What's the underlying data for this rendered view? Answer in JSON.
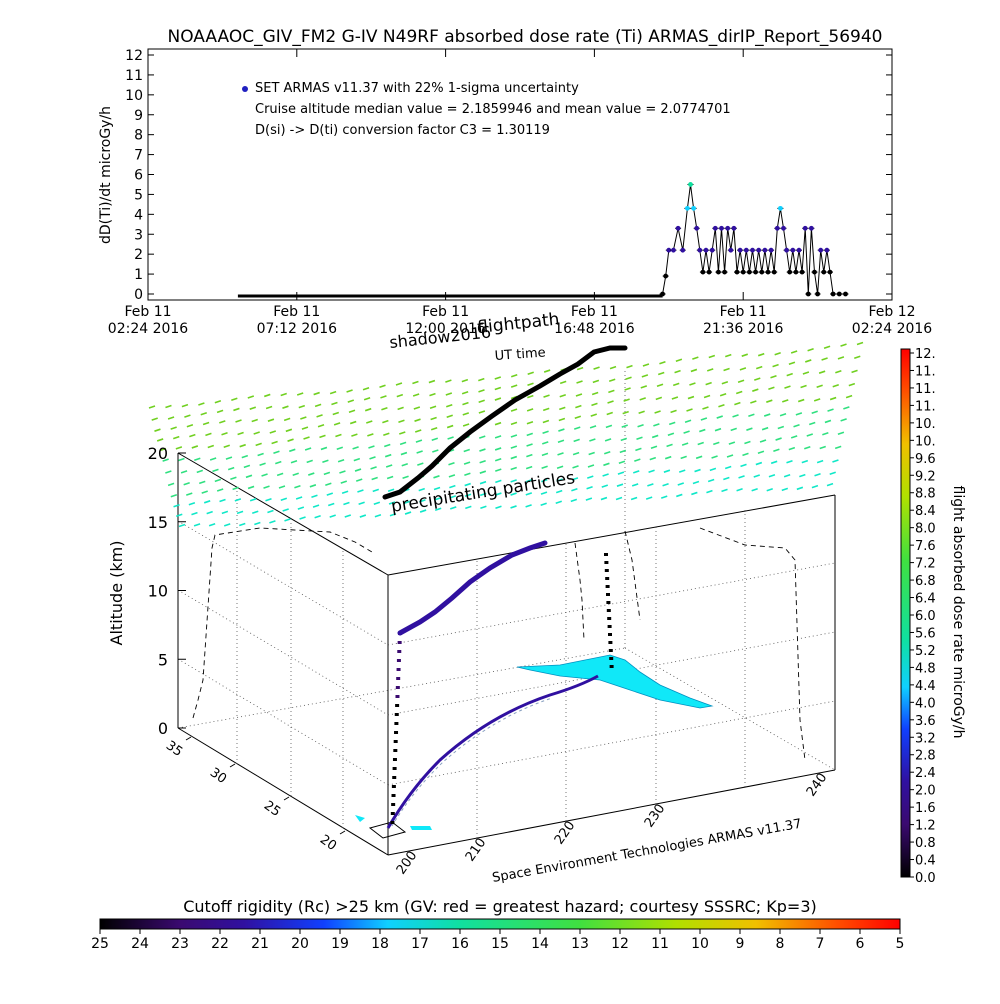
{
  "title": "NOAAAOC_GIV_FM2 G-IV    N49RF  absorbed dose rate (Ti) ARMAS_dirIP_Report_56940",
  "chart_data": [
    {
      "type": "scatter",
      "ylabel": "dD(Ti)/dt microGy/h",
      "ylim": [
        0,
        12
      ],
      "yticks": [
        0,
        1,
        2,
        3,
        4,
        5,
        6,
        7,
        8,
        9,
        10,
        11,
        12
      ],
      "xticks": [
        {
          "line1": "Feb 11",
          "line2": "02:24 2016"
        },
        {
          "line1": "Feb 11",
          "line2": "07:12 2016"
        },
        {
          "line1": "Feb 11",
          "line2": "12:00 2016"
        },
        {
          "line1": "Feb 11",
          "line2": "16:48 2016"
        },
        {
          "line1": "Feb 11",
          "line2": "21:36 2016"
        },
        {
          "line1": "Feb 12",
          "line2": "02:24 2016"
        }
      ],
      "xlim_hours": [
        0,
        24
      ],
      "annotations": [
        "SET ARMAS v11.37 with 22% 1-sigma uncertainty",
        "Cruise altitude median value = 2.1859946 and mean value = 2.0774701",
        "D(si) -> D(ti) conversion factor C3 = 1.30119"
      ],
      "legend_color": "#2020c0",
      "zero_segment_hours": [
        2.9,
        16.6
      ],
      "series_points": [
        [
          16.6,
          0.0
        ],
        [
          16.7,
          0.9
        ],
        [
          16.8,
          2.2
        ],
        [
          16.95,
          2.2
        ],
        [
          17.1,
          3.3
        ],
        [
          17.25,
          2.2
        ],
        [
          17.4,
          4.3
        ],
        [
          17.5,
          5.5
        ],
        [
          17.6,
          4.3
        ],
        [
          17.7,
          3.3
        ],
        [
          17.8,
          2.2
        ],
        [
          17.9,
          1.1
        ],
        [
          18.0,
          2.2
        ],
        [
          18.1,
          1.1
        ],
        [
          18.2,
          2.2
        ],
        [
          18.3,
          3.3
        ],
        [
          18.4,
          1.1
        ],
        [
          18.5,
          3.3
        ],
        [
          18.6,
          1.1
        ],
        [
          18.7,
          3.3
        ],
        [
          18.8,
          2.2
        ],
        [
          18.9,
          3.3
        ],
        [
          19.0,
          1.1
        ],
        [
          19.1,
          2.2
        ],
        [
          19.2,
          1.1
        ],
        [
          19.3,
          2.2
        ],
        [
          19.4,
          1.1
        ],
        [
          19.5,
          2.2
        ],
        [
          19.6,
          1.1
        ],
        [
          19.7,
          2.2
        ],
        [
          19.8,
          1.1
        ],
        [
          19.9,
          2.2
        ],
        [
          20.0,
          1.1
        ],
        [
          20.1,
          2.2
        ],
        [
          20.2,
          1.1
        ],
        [
          20.3,
          3.3
        ],
        [
          20.4,
          4.3
        ],
        [
          20.5,
          3.3
        ],
        [
          20.6,
          2.2
        ],
        [
          20.7,
          1.1
        ],
        [
          20.8,
          2.2
        ],
        [
          20.9,
          1.1
        ],
        [
          21.0,
          2.2
        ],
        [
          21.1,
          1.1
        ],
        [
          21.2,
          3.3
        ],
        [
          21.3,
          0.0
        ],
        [
          21.4,
          3.3
        ],
        [
          21.5,
          1.1
        ],
        [
          21.6,
          0.0
        ],
        [
          21.7,
          2.2
        ],
        [
          21.8,
          1.1
        ],
        [
          21.9,
          2.2
        ],
        [
          22.0,
          1.1
        ],
        [
          22.1,
          0.0
        ],
        [
          22.3,
          0.0
        ],
        [
          22.5,
          0.0
        ]
      ]
    },
    {
      "type": "3d-scatter",
      "zlabel": "Altitude (km)",
      "zticks": [
        0,
        5,
        10,
        15,
        20
      ],
      "lat_ticks": [
        20,
        25,
        30,
        35
      ],
      "lon_ticks": [
        200,
        210,
        220,
        230,
        240
      ],
      "labels": {
        "shadow": "shadow2016",
        "flightpath": "flightpath",
        "ut": "UT time",
        "precip": "precipitating particles",
        "credit": "Space Environment Technologies ARMAS v11.37"
      },
      "colorbar_label": "flight absorbed dose rate microGy/h",
      "colorbar_ticks": [
        "0.0",
        "0.4",
        "0.8",
        "1.2",
        "1.6",
        "2.0",
        "2.4",
        "2.8",
        "3.2",
        "3.6",
        "4.0",
        "4.4",
        "4.8",
        "5.2",
        "5.6",
        "6.0",
        "6.4",
        "6.8",
        "7.2",
        "7.6",
        "8.0",
        "8.4",
        "8.8",
        "9.2",
        "9.6",
        "10.",
        "10.",
        "11.",
        "11.",
        "11.",
        "12."
      ]
    },
    {
      "type": "colorbar",
      "title": "Cutoff rigidity (Rc) >25 km (GV: red = greatest hazard; courtesy SSSRC; Kp=3)",
      "ticks": [
        "25",
        "24",
        "23",
        "22",
        "21",
        "20",
        "19",
        "18",
        "17",
        "16",
        "15",
        "14",
        "13",
        "12",
        "11",
        "10",
        "9",
        "8",
        "7",
        "6",
        "5"
      ]
    }
  ]
}
